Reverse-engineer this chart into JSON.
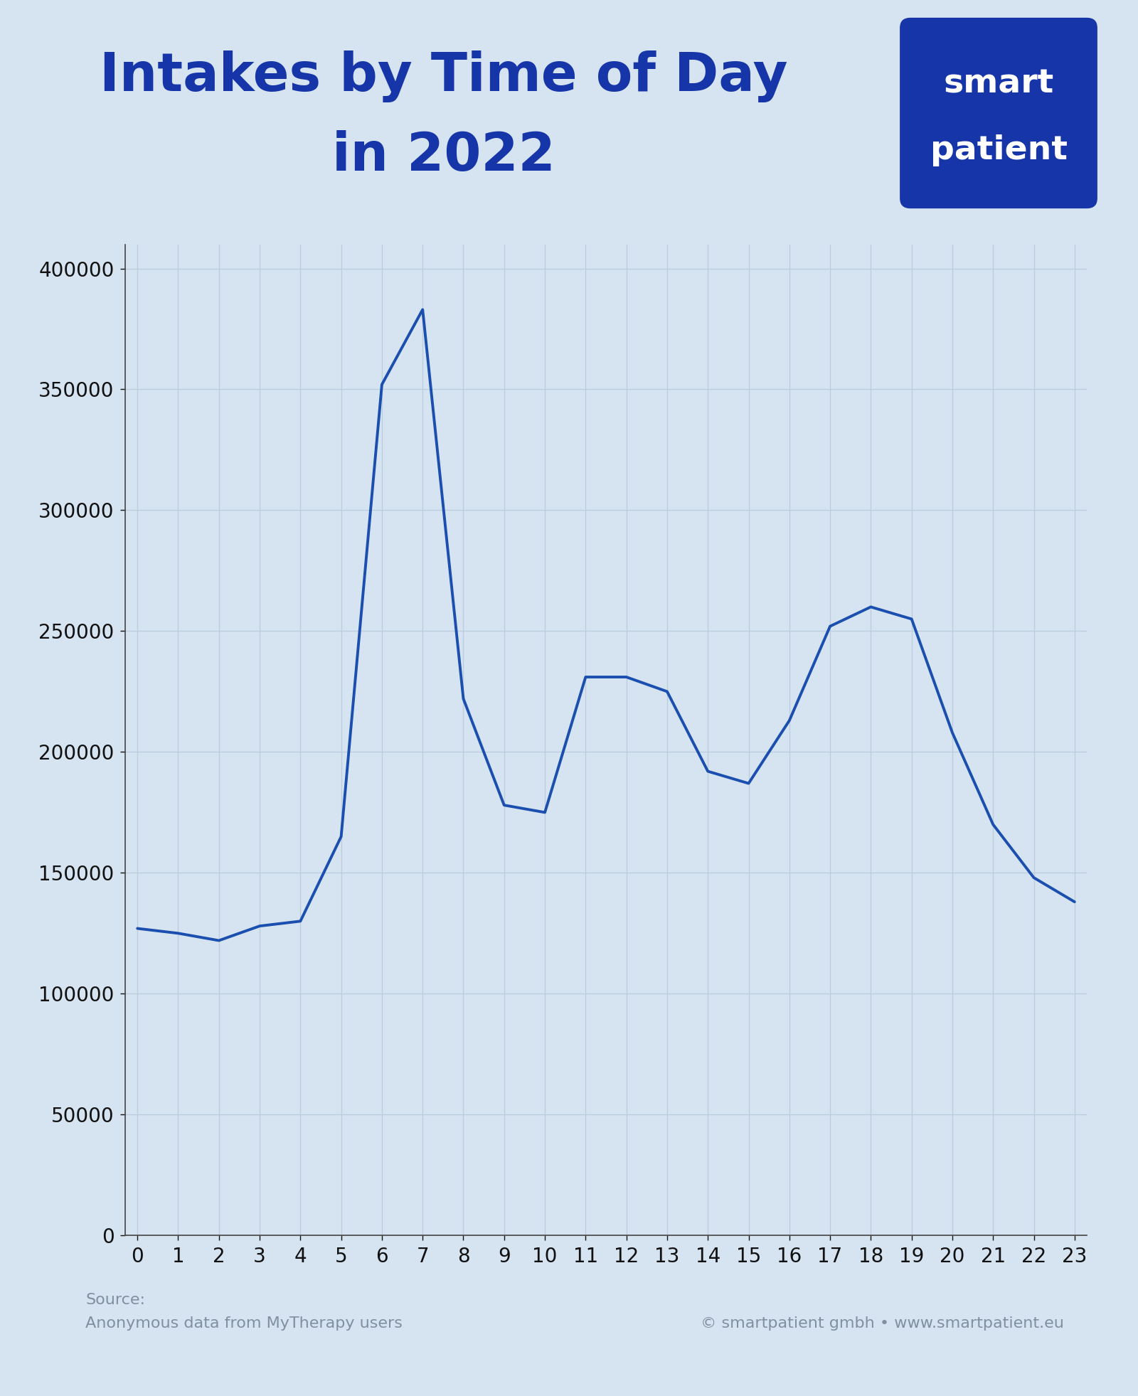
{
  "title_line1": "Intakes by Time of Day",
  "title_line2": "in 2022",
  "title_color": "#1535a8",
  "background_color": "#d6e3f0",
  "plot_bg_color": "#d6e3f0",
  "line_color": "#1a4faf",
  "line_width": 2.8,
  "x_values": [
    0,
    1,
    2,
    3,
    4,
    5,
    6,
    7,
    8,
    9,
    10,
    11,
    12,
    13,
    14,
    15,
    16,
    17,
    18,
    19,
    20,
    21,
    22,
    23
  ],
  "y_values": [
    127000,
    125000,
    122000,
    128000,
    130000,
    165000,
    352000,
    383000,
    222000,
    178000,
    175000,
    231000,
    231000,
    225000,
    192000,
    187000,
    213000,
    252000,
    260000,
    255000,
    208000,
    170000,
    148000,
    138000
  ],
  "ylim": [
    0,
    410000
  ],
  "yticks": [
    0,
    50000,
    100000,
    150000,
    200000,
    250000,
    300000,
    350000,
    400000
  ],
  "xlim": [
    -0.3,
    23.3
  ],
  "xticks": [
    0,
    1,
    2,
    3,
    4,
    5,
    6,
    7,
    8,
    9,
    10,
    11,
    12,
    13,
    14,
    15,
    16,
    17,
    18,
    19,
    20,
    21,
    22,
    23
  ],
  "grid_color": "#baccdf",
  "grid_alpha": 1.0,
  "tick_color": "#111111",
  "tick_fontsize": 20,
  "source_line1": "Source:",
  "source_line2": "Anonymous data from MyTherapy users",
  "copyright_text": "© smartpatient gmbh • www.smartpatient.eu",
  "footer_color": "#8090a0",
  "logo_bg_color": "#1535a8",
  "logo_text_line1": "smart",
  "logo_text_line2": "patient",
  "logo_text_color": "#ffffff",
  "title_fontsize": 54,
  "logo_fontsize": 34
}
